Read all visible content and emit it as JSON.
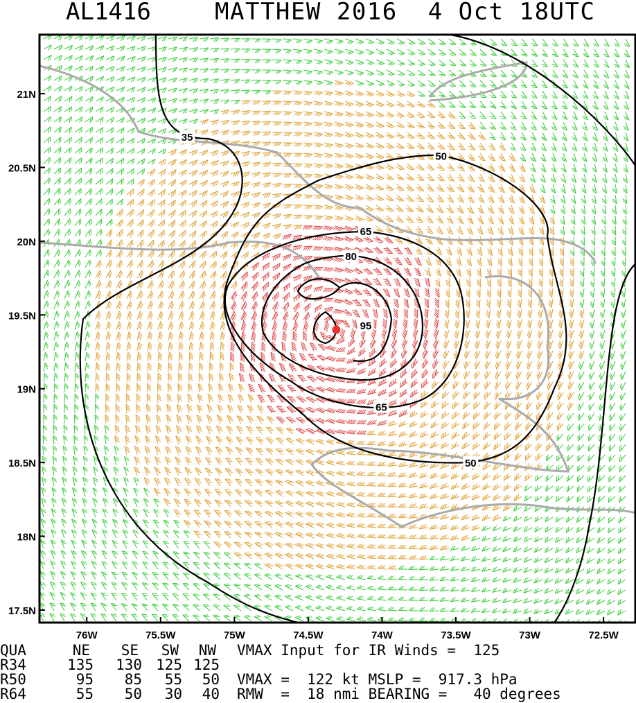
{
  "title": {
    "storm_id": "AL1416",
    "name_time": "MATTHEW 2016  4 Oct 18UTC"
  },
  "map": {
    "xlim": [
      -76.32,
      -72.28
    ],
    "ylim": [
      17.415,
      21.4
    ],
    "xticks": [
      {
        "value": -76,
        "label": "76W"
      },
      {
        "value": -75.5,
        "label": "75.5W"
      },
      {
        "value": -75,
        "label": "75W"
      },
      {
        "value": -74.5,
        "label": "74.5W"
      },
      {
        "value": -74,
        "label": "74W"
      },
      {
        "value": -73.5,
        "label": "73.5W"
      },
      {
        "value": -73,
        "label": "73W"
      },
      {
        "value": -72.5,
        "label": "72.5W"
      }
    ],
    "yticks": [
      {
        "value": 21,
        "label": "21N"
      },
      {
        "value": 20.5,
        "label": "20.5N"
      },
      {
        "value": 20,
        "label": "20N"
      },
      {
        "value": 19.5,
        "label": "19.5N"
      },
      {
        "value": 19,
        "label": "19N"
      },
      {
        "value": 18.5,
        "label": "18.5N"
      },
      {
        "value": 18,
        "label": "18N"
      },
      {
        "value": 17.5,
        "label": "17.5N"
      }
    ],
    "contour_labels": [
      {
        "value": 35,
        "lon": -75.32,
        "lat": 20.71
      },
      {
        "value": 50,
        "lon": -73.6,
        "lat": 20.58
      },
      {
        "value": 65,
        "lon": -74.11,
        "lat": 20.07
      },
      {
        "value": 80,
        "lon": -74.21,
        "lat": 19.9
      },
      {
        "value": 95,
        "lon": -74.11,
        "lat": 19.43
      },
      {
        "value": 65,
        "lon": -74.005,
        "lat": 18.88
      },
      {
        "value": 50,
        "lon": -73.4,
        "lat": 18.5
      }
    ],
    "center": {
      "lon": -74.31,
      "lat": 19.4
    }
  },
  "table": {
    "header": [
      "QUA",
      "NE",
      "SE",
      "SW",
      "NW"
    ],
    "rows": [
      [
        "R34",
        "135",
        "130",
        "125",
        "125"
      ],
      [
        "R50",
        "95",
        "85",
        "55",
        "50"
      ],
      [
        "R64",
        "55",
        "50",
        "30",
        "40"
      ]
    ],
    "notes": [
      "VMAX Input for IR Winds =  125",
      "VMAX =  122 kt MSLP =  917.3 hPa",
      "RMW  =  18 nmi BEARING =   40 degrees"
    ]
  }
}
